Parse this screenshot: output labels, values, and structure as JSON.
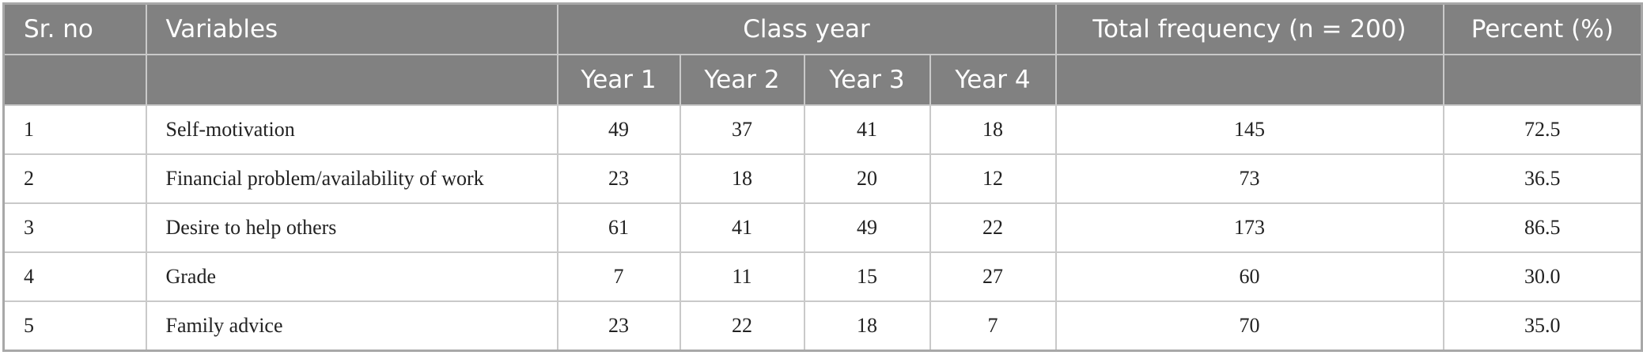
{
  "table": {
    "header": {
      "sr_no": "Sr. no",
      "variables": "Variables",
      "class_year": "Class year",
      "years": [
        "Year 1",
        "Year 2",
        "Year 3",
        "Year 4"
      ],
      "total": "Total frequency (n = 200)",
      "percent": "Percent (%)"
    },
    "rows": [
      [
        "1",
        "Self-motivation",
        "49",
        "37",
        "41",
        "18",
        "145",
        "72.5"
      ],
      [
        "2",
        "Financial problem/availability of work",
        "23",
        "18",
        "20",
        "12",
        "73",
        "36.5"
      ],
      [
        "3",
        "Desire to help others",
        "61",
        "41",
        "49",
        "22",
        "173",
        "86.5"
      ],
      [
        "4",
        "Grade",
        "7",
        "11",
        "15",
        "27",
        "60",
        "30.0"
      ],
      [
        "5",
        "Family advice",
        "23",
        "22",
        "18",
        "7",
        "70",
        "35.0"
      ]
    ]
  }
}
